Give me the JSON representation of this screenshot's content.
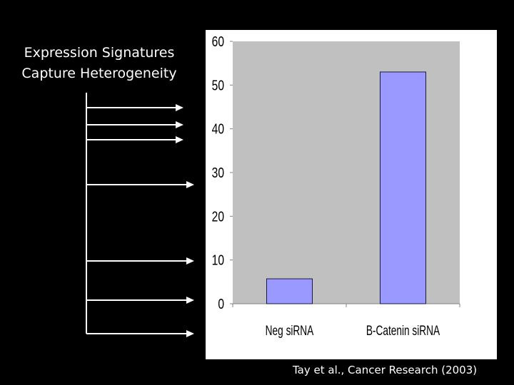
{
  "slide": {
    "title_line1": "Expression Signatures",
    "title_line2": "Capture Heterogeneity",
    "citation": "Tay et al., Cancer Research (2003)"
  },
  "colors": {
    "background": "#000000",
    "text": "#ffffff",
    "plot_area": "#c0c0c0",
    "bar_fill": "#9999ff",
    "arrow": "#ffffff"
  },
  "chart_data": {
    "type": "bar",
    "categories": [
      "Neg siRNA",
      "B-Catenin siRNA"
    ],
    "values": [
      5.7,
      53
    ],
    "ylim": [
      0,
      60
    ],
    "yticks": [
      0,
      10,
      20,
      30,
      40,
      50,
      60
    ],
    "grid": false,
    "legend": "none"
  }
}
